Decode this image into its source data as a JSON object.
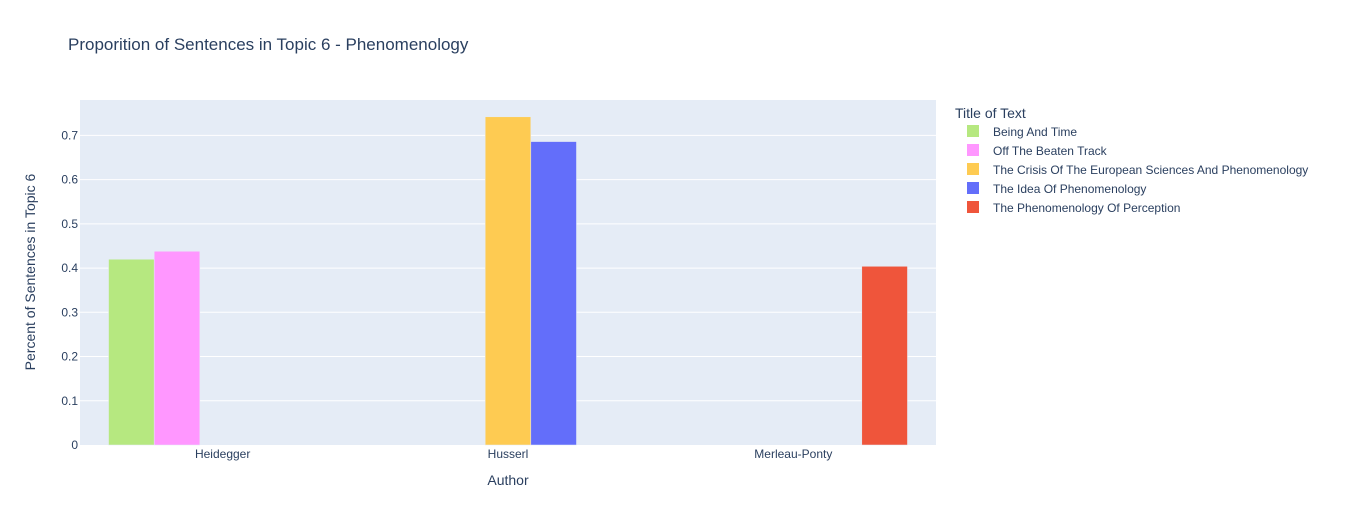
{
  "chart_data": {
    "type": "bar",
    "title": "Proporition of Sentences in Topic 6 - Phenomenology",
    "xlabel": "Author",
    "ylabel": "Percent of Sentences in Topic 6",
    "categories": [
      "Heidegger",
      "Husserl",
      "Merleau-Ponty"
    ],
    "ylim": [
      0,
      0.78
    ],
    "yticks": [
      0,
      0.1,
      0.2,
      0.3,
      0.4,
      0.5,
      0.6,
      0.7
    ],
    "ytick_labels": [
      "0",
      "0.1",
      "0.2",
      "0.3",
      "0.4",
      "0.5",
      "0.6",
      "0.7"
    ],
    "grid": true,
    "plot_background": "#e5ecf6",
    "legend": {
      "title": "Title of Text",
      "placement": "right"
    },
    "series": [
      {
        "name": "Being And Time",
        "color": "#b6e880",
        "values": [
          0.42,
          null,
          null
        ]
      },
      {
        "name": "Off The Beaten Track",
        "color": "#ff97ff",
        "values": [
          0.438,
          null,
          null
        ]
      },
      {
        "name": "The Crisis Of The European Sciences And Phenomenology",
        "color": "#fecb52",
        "values": [
          null,
          0.742,
          null
        ]
      },
      {
        "name": "The Idea Of Phenomenology",
        "color": "#636efa",
        "values": [
          null,
          0.686,
          null
        ]
      },
      {
        "name": "The Phenomenology Of Perception",
        "color": "#ef553b",
        "values": [
          null,
          null,
          0.404
        ]
      }
    ]
  }
}
